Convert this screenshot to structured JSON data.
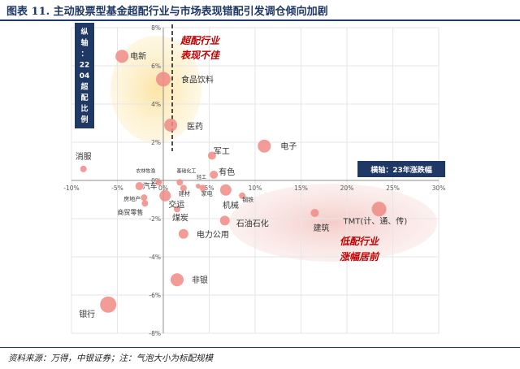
{
  "header": {
    "title": "图表 11. 主动股票型基金超配行业与市场表现错配引发调仓倾向加剧"
  },
  "footer": {
    "source": "资料来源：万得，中银证券；注：气泡大小为标配规模"
  },
  "chart_data": {
    "type": "scatter",
    "xlim": [
      -10,
      30
    ],
    "ylim": [
      -8,
      8
    ],
    "x_ticks": [
      "-10%",
      "-5%",
      "0%",
      "5%",
      "10%",
      "15%",
      "20%",
      "25%",
      "30%"
    ],
    "y_ticks": [
      "8%",
      "6%",
      "4%",
      "2%",
      "0%",
      "-2%",
      "-4%",
      "-6%",
      "-8%"
    ],
    "grid": true,
    "xlabel": "横轴：23年涨跌幅",
    "ylabel": "纵轴：2204超配比例",
    "annotations": [
      "超配行业表现不佳",
      "低配行业涨幅居前"
    ],
    "points": [
      {
        "label": "电新",
        "x": -4.5,
        "y": 6.5,
        "size": 8
      },
      {
        "label": "食品饮料",
        "x": 0.0,
        "y": 5.3,
        "size": 9
      },
      {
        "label": "医药",
        "x": 0.8,
        "y": 2.9,
        "size": 8
      },
      {
        "label": "电子",
        "x": 11.0,
        "y": 1.8,
        "size": 8
      },
      {
        "label": "军工",
        "x": 5.3,
        "y": 1.3,
        "size": 5
      },
      {
        "label": "消服",
        "x": -8.7,
        "y": 0.6,
        "size": 4
      },
      {
        "label": "有色",
        "x": 5.5,
        "y": 0.3,
        "size": 5
      },
      {
        "label": "农林牧渔",
        "x": -0.5,
        "y": -0.1,
        "size": 4
      },
      {
        "label": "基础化工",
        "x": 1.8,
        "y": -0.1,
        "size": 4
      },
      {
        "label": "轻工",
        "x": 3.8,
        "y": -0.3,
        "size": 3
      },
      {
        "label": "汽车",
        "x": -2.6,
        "y": -0.3,
        "size": 5
      },
      {
        "label": "房地产",
        "x": -2.1,
        "y": -0.9,
        "size": 4
      },
      {
        "label": "建材",
        "x": 2.2,
        "y": -0.4,
        "size": 4
      },
      {
        "label": "家电",
        "x": 4.3,
        "y": -0.4,
        "size": 4
      },
      {
        "label": "钢铁",
        "x": 8.6,
        "y": -0.8,
        "size": 4
      },
      {
        "label": "机械",
        "x": 6.8,
        "y": -0.5,
        "size": 7
      },
      {
        "label": "交运",
        "x": 0.2,
        "y": -0.8,
        "size": 7
      },
      {
        "label": "商贸零售",
        "x": -2.0,
        "y": -1.2,
        "size": 4
      },
      {
        "label": "煤炭",
        "x": 1.5,
        "y": -1.5,
        "size": 4
      },
      {
        "label": "石油石化",
        "x": 6.7,
        "y": -2.1,
        "size": 6
      },
      {
        "label": "电力公用",
        "x": 2.2,
        "y": -2.8,
        "size": 6
      },
      {
        "label": "建筑",
        "x": 16.5,
        "y": -1.7,
        "size": 5
      },
      {
        "label": "TMT(计、通、传)",
        "x": 23.5,
        "y": -1.5,
        "size": 9
      },
      {
        "label": "非银",
        "x": 1.5,
        "y": -5.2,
        "size": 8
      },
      {
        "label": "银行",
        "x": -6.0,
        "y": -6.5,
        "size": 10
      }
    ]
  }
}
